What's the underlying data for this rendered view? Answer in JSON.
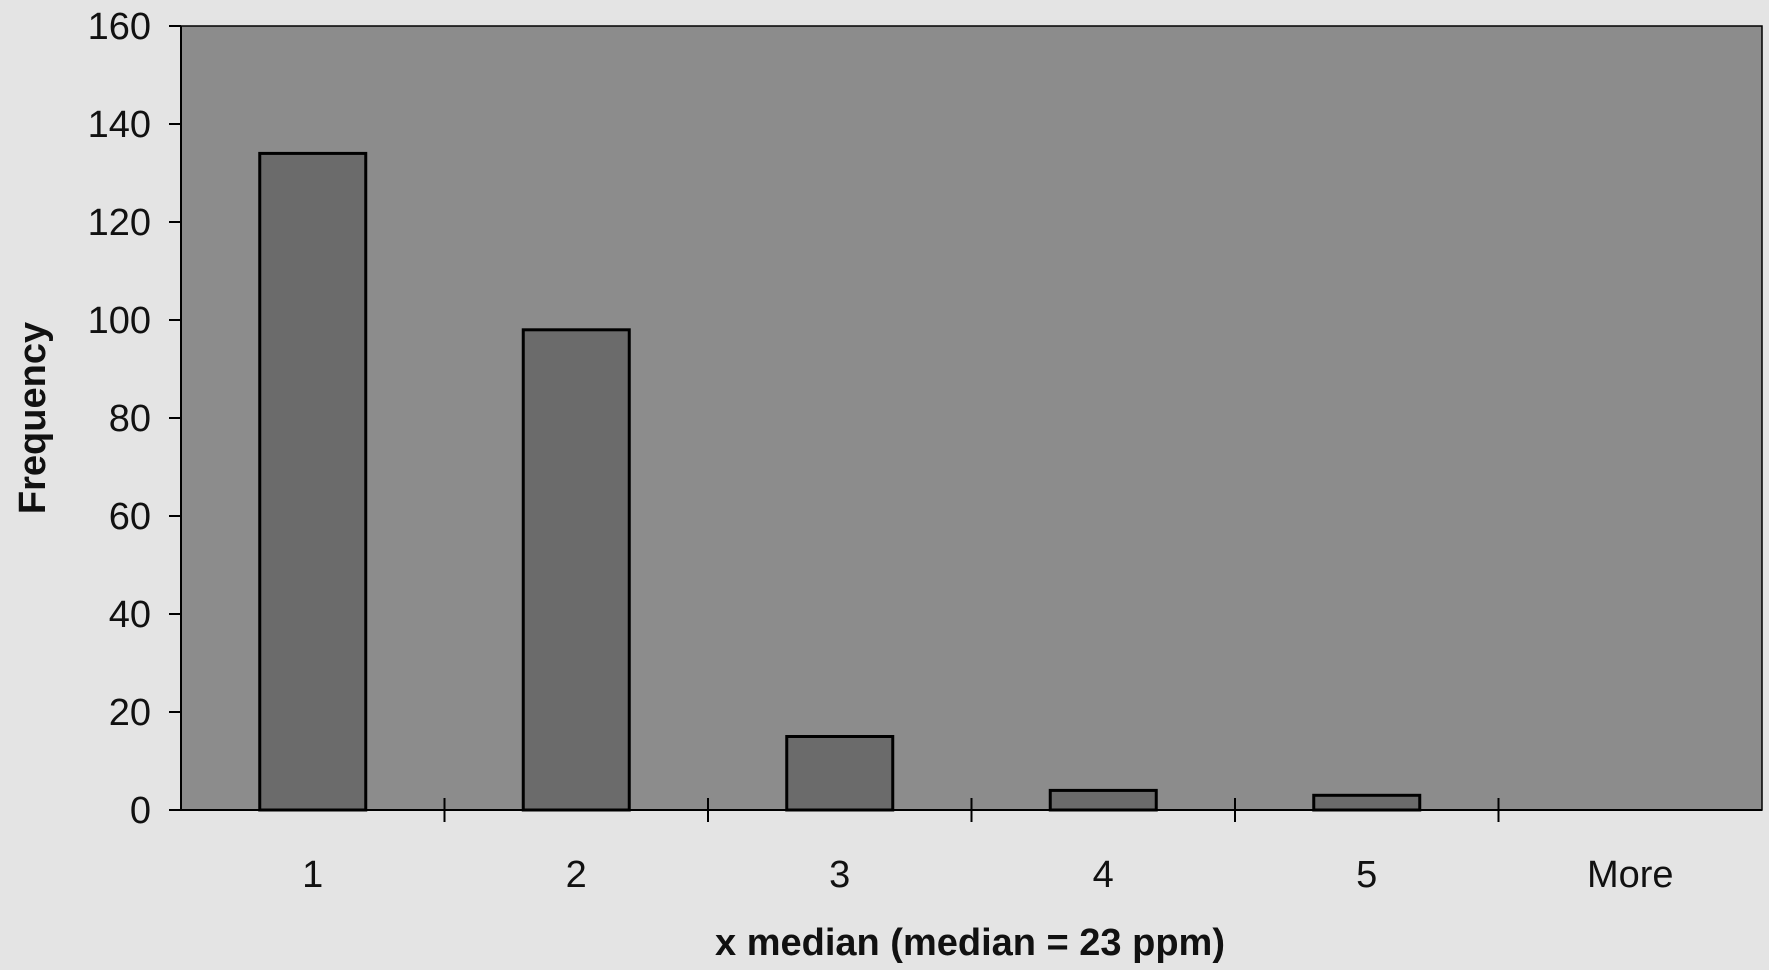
{
  "chart_data": {
    "type": "bar",
    "title": "",
    "xlabel": "x median (median = 23 ppm)",
    "ylabel": "Frequency",
    "categories": [
      "1",
      "2",
      "3",
      "4",
      "5",
      "More"
    ],
    "values": [
      134,
      98,
      15,
      4,
      3,
      0
    ],
    "ylim": [
      0,
      160
    ],
    "yticks": [
      0,
      20,
      40,
      60,
      80,
      100,
      120,
      140,
      160
    ],
    "ytick_labels": [
      "0",
      "20",
      "40",
      "60",
      "80",
      "100",
      "120",
      "140",
      "160"
    ],
    "grid": false,
    "legend": "none",
    "colors": {
      "page_background": "#e4e4e4",
      "plot_background": "#8c8c8c",
      "bar_fill": "#6b6b6b",
      "bar_stroke": "#000000",
      "axis": "#000000",
      "text": "#111111"
    }
  }
}
